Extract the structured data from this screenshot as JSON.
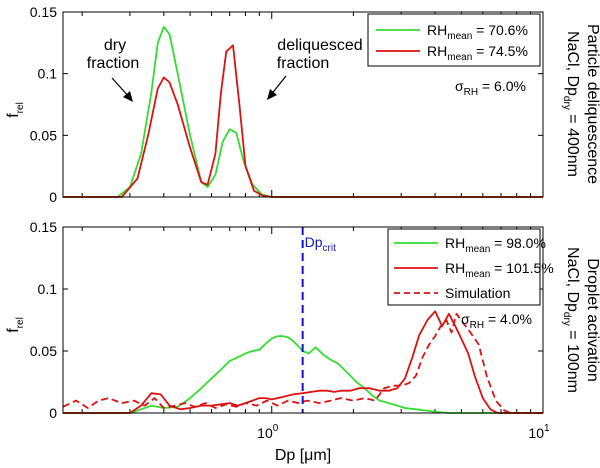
{
  "figure": {
    "xlabel_main": "Dp",
    "xlabel_unit": "[μm]",
    "ylabel_main": "f",
    "ylabel_sub": "rel",
    "x_tick_labels": [
      {
        "base": "10",
        "exp": "0",
        "value": 1
      },
      {
        "base": "10",
        "exp": "1",
        "value": 10
      }
    ],
    "y_tick_labels": [
      "0",
      "0.05",
      "0.1",
      "0.15"
    ],
    "colors": {
      "green": "#33dd33",
      "red": "#dd1111",
      "blue": "#1111cc",
      "axis": "#000000"
    }
  },
  "chart_data": [
    {
      "type": "line",
      "x_scale": "log",
      "xlim": [
        0.17,
        10
      ],
      "ylim": [
        0,
        0.15
      ],
      "y_ticks": [
        0,
        0.05,
        0.1,
        0.15
      ],
      "side_label_line1": "Particle deliquescence",
      "side_label_line2_prefix": "NaCl, Dp",
      "side_label_line2_sub": "dry",
      "side_label_line2_suffix": " = 400nm",
      "annotations": {
        "dry_line1": "dry",
        "dry_line2": "fraction",
        "deliq_line1": "deliquesced",
        "deliq_line2": "fraction",
        "sigma_prefix": "σ",
        "sigma_sub": "RH",
        "sigma_value": " = 6.0%"
      },
      "series": [
        {
          "legend_main": "RH",
          "legend_sub": "mean",
          "legend_value": " = 70.6%",
          "color": "#33dd33",
          "style": "solid",
          "x": [
            0.17,
            0.27,
            0.3,
            0.33,
            0.36,
            0.38,
            0.4,
            0.42,
            0.45,
            0.5,
            0.55,
            0.58,
            0.62,
            0.66,
            0.7,
            0.74,
            0.79,
            0.85,
            0.92,
            1.0,
            10
          ],
          "y": [
            0,
            0,
            0.008,
            0.035,
            0.085,
            0.125,
            0.138,
            0.132,
            0.1,
            0.05,
            0.012,
            0.008,
            0.018,
            0.045,
            0.055,
            0.052,
            0.028,
            0.01,
            0.002,
            0,
            0
          ]
        },
        {
          "legend_main": "RH",
          "legend_sub": "mean",
          "legend_value": " = 74.5%",
          "color": "#dd1111",
          "style": "solid",
          "x": [
            0.17,
            0.28,
            0.32,
            0.35,
            0.38,
            0.4,
            0.42,
            0.45,
            0.5,
            0.55,
            0.58,
            0.62,
            0.65,
            0.68,
            0.72,
            0.76,
            0.8,
            0.86,
            0.93,
            1.0,
            10
          ],
          "y": [
            0,
            0,
            0.015,
            0.05,
            0.088,
            0.097,
            0.093,
            0.075,
            0.04,
            0.012,
            0.01,
            0.035,
            0.085,
            0.118,
            0.123,
            0.075,
            0.025,
            0.005,
            0.001,
            0,
            0
          ]
        }
      ]
    },
    {
      "type": "line",
      "x_scale": "log",
      "xlim": [
        0.17,
        10
      ],
      "ylim": [
        0,
        0.15
      ],
      "y_ticks": [
        0,
        0.05,
        0.1,
        0.15
      ],
      "side_label_line1": "Droplet activation",
      "side_label_line2_prefix": "NaCl, Dp",
      "side_label_line2_sub": "dry",
      "side_label_line2_suffix": " = 100nm",
      "vline": {
        "x": 1.3,
        "label_main": "Dp",
        "label_sub": "crit",
        "color": "#1111cc"
      },
      "annotations": {
        "sigma_prefix": "σ",
        "sigma_sub": "RH",
        "sigma_value": " = 4.0%"
      },
      "series": [
        {
          "legend_main": "RH",
          "legend_sub": "mean",
          "legend_value": " = 98.0%",
          "color": "#33dd33",
          "style": "solid",
          "x": [
            0.17,
            0.3,
            0.33,
            0.36,
            0.4,
            0.45,
            0.5,
            0.55,
            0.6,
            0.65,
            0.7,
            0.75,
            0.8,
            0.85,
            0.9,
            0.95,
            1.0,
            1.05,
            1.1,
            1.15,
            1.2,
            1.25,
            1.3,
            1.37,
            1.45,
            1.55,
            1.65,
            1.75,
            1.85,
            1.95,
            2.05,
            2.2,
            2.35,
            2.5,
            2.7,
            2.9,
            3.1,
            3.4,
            3.7,
            4.0,
            4.5,
            5.0,
            10
          ],
          "y": [
            0,
            0,
            0.003,
            0.006,
            0.004,
            0.005,
            0.012,
            0.02,
            0.028,
            0.035,
            0.042,
            0.045,
            0.048,
            0.05,
            0.051,
            0.056,
            0.06,
            0.062,
            0.062,
            0.061,
            0.058,
            0.054,
            0.05,
            0.048,
            0.053,
            0.047,
            0.043,
            0.04,
            0.035,
            0.03,
            0.025,
            0.02,
            0.014,
            0.01,
            0.008,
            0.006,
            0.004,
            0.003,
            0.002,
            0.001,
            0,
            0,
            0
          ]
        },
        {
          "legend_main": "RH",
          "legend_sub": "mean",
          "legend_value": " = 101.5%",
          "color": "#dd1111",
          "style": "solid",
          "x": [
            0.17,
            0.3,
            0.33,
            0.36,
            0.39,
            0.42,
            0.46,
            0.5,
            0.55,
            0.6,
            0.65,
            0.7,
            0.75,
            0.8,
            0.85,
            0.9,
            0.95,
            1.0,
            1.05,
            1.1,
            1.2,
            1.3,
            1.4,
            1.5,
            1.6,
            1.7,
            1.8,
            1.95,
            2.1,
            2.3,
            2.5,
            2.7,
            2.9,
            3.1,
            3.3,
            3.5,
            3.75,
            4.0,
            4.25,
            4.5,
            4.75,
            5.0,
            5.3,
            5.6,
            6.0,
            6.4,
            6.8,
            10
          ],
          "y": [
            0,
            0,
            0.006,
            0.016,
            0.015,
            0.006,
            0.003,
            0.004,
            0.006,
            0.006,
            0.007,
            0.008,
            0.006,
            0.008,
            0.01,
            0.012,
            0.012,
            0.011,
            0.012,
            0.013,
            0.015,
            0.016,
            0.017,
            0.018,
            0.018,
            0.017,
            0.018,
            0.018,
            0.02,
            0.02,
            0.018,
            0.018,
            0.02,
            0.028,
            0.045,
            0.063,
            0.075,
            0.082,
            0.07,
            0.08,
            0.07,
            0.06,
            0.048,
            0.03,
            0.012,
            0.003,
            0,
            0
          ]
        },
        {
          "legend_main": "Simulation",
          "legend_sub": "",
          "legend_value": "",
          "color": "#dd1111",
          "style": "dashed",
          "x": [
            0.17,
            0.19,
            0.21,
            0.23,
            0.25,
            0.28,
            0.31,
            0.34,
            0.37,
            0.4,
            0.44,
            0.48,
            0.52,
            0.57,
            0.62,
            0.68,
            0.74,
            0.8,
            0.88,
            0.96,
            1.05,
            1.15,
            1.25,
            1.35,
            1.5,
            1.65,
            1.8,
            2.0,
            2.2,
            2.4,
            2.6,
            2.8,
            3.0,
            3.2,
            3.4,
            3.6,
            3.8,
            4.0,
            4.2,
            4.4,
            4.6,
            4.8,
            5.1,
            5.4,
            5.8,
            6.2,
            6.7,
            7.2,
            7.6,
            10
          ],
          "y": [
            0.005,
            0.01,
            0.004,
            0.01,
            0.012,
            0.008,
            0.01,
            0.006,
            0.012,
            0.004,
            0.006,
            0.008,
            0.005,
            0.008,
            0.004,
            0.007,
            0.005,
            0.008,
            0.006,
            0.01,
            0.006,
            0.01,
            0.008,
            0.01,
            0.008,
            0.01,
            0.012,
            0.01,
            0.012,
            0.01,
            0.02,
            0.022,
            0.022,
            0.024,
            0.03,
            0.045,
            0.055,
            0.062,
            0.07,
            0.075,
            0.065,
            0.08,
            0.072,
            0.065,
            0.055,
            0.03,
            0.01,
            0.002,
            0,
            0
          ]
        }
      ]
    }
  ]
}
